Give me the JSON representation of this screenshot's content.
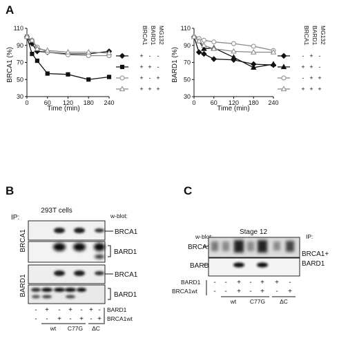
{
  "panels": {
    "A": {
      "letter": "A"
    },
    "B": {
      "letter": "B"
    },
    "C": {
      "letter": "C"
    }
  },
  "chart_data": [
    {
      "type": "line",
      "title": "",
      "xlabel": "Time (min)",
      "ylabel": "BRCA1 (%)",
      "x": [
        0,
        15,
        30,
        60,
        120,
        180,
        240
      ],
      "xticks": [
        0,
        60,
        120,
        180,
        240
      ],
      "yticks": [
        30,
        50,
        70,
        90,
        110
      ],
      "xlim": [
        0,
        240
      ],
      "ylim": [
        30,
        110
      ],
      "grid": false,
      "legend_headers": [
        "BRCA1",
        "BARD1",
        "MG132"
      ],
      "series": [
        {
          "marker": "filled-diamond",
          "color": "#111111",
          "signs": [
            "+",
            "-",
            "-"
          ],
          "values": [
            100,
            92,
            83,
            82,
            80,
            80,
            83
          ]
        },
        {
          "marker": "filled-square",
          "color": "#111111",
          "signs": [
            "+",
            "+",
            "-"
          ],
          "values": [
            100,
            80,
            72,
            57,
            56,
            50,
            53
          ]
        },
        {
          "marker": "open-circle",
          "color": "#888888",
          "signs": [
            "+",
            "-",
            "+"
          ],
          "values": [
            100,
            96,
            88,
            82,
            79,
            78,
            78
          ]
        },
        {
          "marker": "open-triangle",
          "color": "#888888",
          "signs": [
            "+",
            "+",
            "+"
          ],
          "values": [
            100,
            96,
            86,
            84,
            82,
            82,
            81
          ]
        }
      ]
    },
    {
      "type": "line",
      "title": "",
      "xlabel": "Time (min)",
      "ylabel": "BARD1 (%)",
      "x": [
        0,
        15,
        30,
        60,
        120,
        180,
        240
      ],
      "xticks": [
        0,
        60,
        120,
        180,
        240
      ],
      "yticks": [
        30,
        50,
        70,
        90,
        110
      ],
      "xlim": [
        0,
        240
      ],
      "ylim": [
        30,
        110
      ],
      "grid": false,
      "legend_headers": [
        "BRCA1",
        "BARD1",
        "MG132"
      ],
      "series": [
        {
          "marker": "filled-diamond",
          "color": "#111111",
          "signs": [
            "-",
            "+",
            "-"
          ],
          "values": [
            100,
            82,
            80,
            74,
            73,
            68,
            67
          ]
        },
        {
          "marker": "filled-triangle",
          "color": "#111111",
          "signs": [
            "+",
            "+",
            "-"
          ],
          "values": [
            100,
            95,
            86,
            87,
            76,
            64,
            68
          ]
        },
        {
          "marker": "open-circle",
          "color": "#888888",
          "signs": [
            "-",
            "+",
            "+"
          ],
          "values": [
            100,
            98,
            96,
            94,
            92,
            89,
            84
          ]
        },
        {
          "marker": "open-triangle",
          "color": "#888888",
          "signs": [
            "+",
            "+",
            "+"
          ],
          "values": [
            100,
            95,
            90,
            86,
            83,
            82,
            82
          ]
        }
      ]
    }
  ],
  "blotB": {
    "ip": "IP:",
    "cells": "293T cells",
    "wblot": "w-blot:",
    "ip_labels": [
      "BRCA1",
      "BARD1"
    ],
    "row_labels": [
      "BRCA1",
      "BARD1",
      "BRCA1",
      "BARD1"
    ],
    "bard1_row": [
      "-",
      "+",
      "-",
      "+",
      "-",
      "+",
      "-"
    ],
    "brca1_row": [
      "-",
      "-",
      "+",
      "-",
      "+",
      "-",
      "+"
    ],
    "row_names": [
      "BARD1",
      "BRCA1wt"
    ],
    "groups": [
      "wt",
      "C77G",
      "ΔC"
    ]
  },
  "blotC": {
    "stage": "Stage 12",
    "wblot": "w-blot:",
    "ip": "IP:",
    "ip_target": [
      "BRCA1+",
      "BARD1"
    ],
    "row_labels": [
      "BRCA1",
      "BARD1"
    ],
    "bard1_row": [
      "-",
      "-",
      "+",
      "-",
      "+",
      "+",
      "-"
    ],
    "brca1_row": [
      "-",
      "-",
      "+",
      "-",
      "+",
      "-",
      "+"
    ],
    "row_names": [
      "BARD1",
      "BRCA1wt"
    ],
    "groups": [
      "wt",
      "C77G",
      "ΔC"
    ]
  }
}
